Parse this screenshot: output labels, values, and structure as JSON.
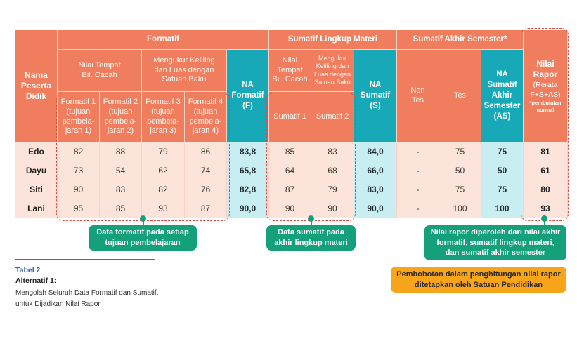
{
  "table": {
    "head": {
      "nama": "Nama Peserta Didik",
      "formatif": "Formatif",
      "sumatif_lingkup": "Sumatif Lingkup Materi",
      "sumatif_akhir": "Sumatif Akhir Semester*",
      "nilai_tempat": "Nilai Tempat Bil. Cacah",
      "mengukur": "Mengukur Keliling dan Luas dengan Satuan Baku",
      "formatif_cols": [
        "Formatif 1 (tujuan pembela-jaran 1)",
        "Formatif 2 (tujuan pembela-jaran 2)",
        "Formatif 3 (tujuan pembela-jaran 3)",
        "Formatif 4 (tujuan pembela-jaran 4)"
      ],
      "na_formatif": "NA Formatif (F)",
      "sum_nilai_tempat": "Nilai Tempat Bil. Cacah",
      "sum_mengukur": "Mengukur Keliling dan Luas dengan Satuan Baku",
      "sumatif1": "Sumatif 1",
      "sumatif2": "Sumatif 2",
      "na_sumatif": "NA Sumatif (S)",
      "non_tes": "Non Tes",
      "tes": "Tes",
      "na_sas": "NA Sumatif Akhir Semester (AS)",
      "nilai_rapor": "Nilai Rapor",
      "rerata": "(Rerata F+S+AS)",
      "pembulatan": "*pembulatan normal"
    },
    "rows": [
      {
        "name": "Edo",
        "f1": "82",
        "f2": "88",
        "f3": "79",
        "f4": "86",
        "naf": "83,8",
        "s1": "85",
        "s2": "83",
        "nas": "84,0",
        "nontes": "-",
        "tes": "75",
        "naas": "75",
        "rapor": "81"
      },
      {
        "name": "Dayu",
        "f1": "73",
        "f2": "54",
        "f3": "62",
        "f4": "74",
        "naf": "65,8",
        "s1": "64",
        "s2": "68",
        "nas": "66,0",
        "nontes": "-",
        "tes": "50",
        "naas": "50",
        "rapor": "61"
      },
      {
        "name": "Siti",
        "f1": "90",
        "f2": "83",
        "f3": "82",
        "f4": "76",
        "naf": "82,8",
        "s1": "87",
        "s2": "79",
        "nas": "83,0",
        "nontes": "-",
        "tes": "75",
        "naas": "75",
        "rapor": "80"
      },
      {
        "name": "Lani",
        "f1": "95",
        "f2": "85",
        "f3": "93",
        "f4": "87",
        "naf": "90,0",
        "s1": "90",
        "s2": "90",
        "nas": "90,0",
        "nontes": "-",
        "tes": "100",
        "naas": "100",
        "rapor": "93"
      }
    ]
  },
  "callouts": {
    "formatif": "Data formatif pada setiap tujuan pembelajaran",
    "sumatif": "Data sumatif pada akhir lingkup materi",
    "rapor": "Nilai rapor diperoleh dari nilai akhir formatif, sumatif lingkup materi, dan sumatif akhir semester",
    "pembobotan": "Pembobotan dalam penghitungan nilai rapor ditetapkan oleh Satuan Pendidikan"
  },
  "caption": {
    "tag": "Tabel 2",
    "title": "Alternatif 1:",
    "body": "Mengolah Seluruh Data Formatif dan Sumatif, untuk Dijadikan Nilai Rapor."
  },
  "colors": {
    "orange": "#f07e5e",
    "teal": "#17a9b7",
    "peach": "#fce4da",
    "light_teal": "#c8eef1",
    "green": "#14a07a",
    "amber": "#f8a51b"
  }
}
